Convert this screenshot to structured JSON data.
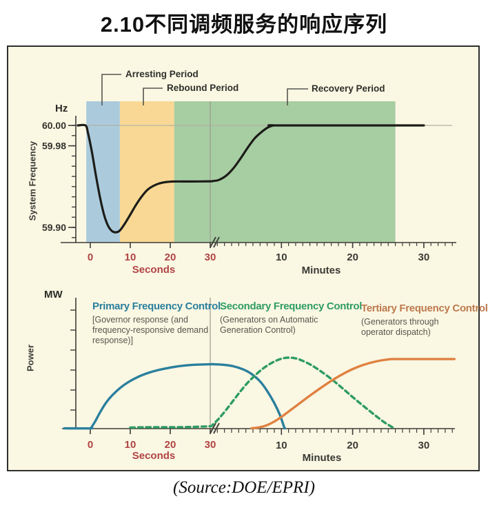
{
  "title": "2.10不同调频服务的响应序列",
  "source": "(Source:DOE/EPRI)",
  "colors": {
    "background_panel": "#faf7e3",
    "seconds_axis_text": "#b04343",
    "minutes_axis_text": "#3a3a34",
    "frequency_curve": "#1c1c18"
  },
  "chart_data": [
    {
      "id": "system-frequency-response",
      "type": "line",
      "title": "",
      "ylabel": "System Frequency",
      "y_unit": "Hz",
      "ylim": [
        59.885,
        60.005
      ],
      "y_ticks": [
        {
          "value": 60.0,
          "label": "60.00"
        },
        {
          "value": 59.98,
          "label": "59.98"
        },
        {
          "value": 59.9,
          "label": "59.90"
        }
      ],
      "y_minor_tick_step": 0.01,
      "gridline_hz": 60.0,
      "x_axis": {
        "seconds_label": "Seconds",
        "ticks_seconds": [
          0,
          10,
          20,
          30
        ],
        "minutes_label": "Minutes",
        "ticks_minutes": [
          10,
          20,
          30
        ],
        "break_after_seconds": 30
      },
      "bands": [
        {
          "label": "Arresting Period",
          "color": "#abcbdd",
          "from_seconds": -1,
          "to_seconds": 7.4
        },
        {
          "label": "Rebound Period",
          "color": "#f8d894",
          "from_seconds": 7.4,
          "to_seconds": 21
        },
        {
          "label": "Recovery Period",
          "color": "#a7cda2",
          "from_seconds": 21,
          "to_minutes": 26
        }
      ],
      "series": [
        {
          "name": "System Frequency",
          "color": "#1c1c18",
          "style": "solid",
          "points_seconds": [
            [
              -3.1,
              60.0
            ],
            [
              -1.2,
              60.0
            ],
            [
              -0.6,
              59.993
            ],
            [
              0.4,
              59.974
            ],
            [
              1.4,
              59.951
            ],
            [
              2.4,
              59.93
            ],
            [
              3.4,
              59.913
            ],
            [
              4.4,
              59.902
            ],
            [
              5.4,
              59.8965
            ],
            [
              6.4,
              59.8952
            ],
            [
              7.4,
              59.897
            ],
            [
              8.6,
              59.9035
            ],
            [
              10,
              59.9125
            ],
            [
              11.5,
              59.9225
            ],
            [
              13,
              59.931
            ],
            [
              14.5,
              59.9375
            ],
            [
              16.5,
              59.942
            ],
            [
              18.5,
              59.9442
            ],
            [
              21,
              59.945
            ],
            [
              25,
              59.945
            ],
            [
              30,
              59.9452
            ]
          ],
          "points_minutes": [
            [
              0.4,
              59.9455
            ],
            [
              1.2,
              59.9465
            ],
            [
              2.2,
              59.9505
            ],
            [
              3.2,
              59.9575
            ],
            [
              4.2,
              59.967
            ],
            [
              5.2,
              59.9775
            ],
            [
              6.2,
              59.987
            ],
            [
              7.2,
              59.9935
            ],
            [
              8.1,
              59.998
            ],
            [
              8.9,
              60.0
            ],
            [
              10,
              60.0
            ],
            [
              30,
              60.0
            ]
          ]
        }
      ]
    },
    {
      "id": "power-response",
      "type": "line",
      "title": "",
      "ylabel": "Power",
      "y_unit": "MW",
      "value_scale": "relative (no numeric scale shown)",
      "x_axis": {
        "seconds_label": "Seconds",
        "ticks_seconds": [
          0,
          10,
          20,
          30
        ],
        "minutes_label": "Minutes",
        "ticks_minutes": [
          10,
          20,
          30
        ],
        "break_after_seconds": 30
      },
      "series": [
        {
          "name": "Primary Frequency Control",
          "annotation": "[Governor response (and frequency-responsive demand response)]",
          "color": "#2a7f9d",
          "label_color": "#2a7f9d",
          "style": "solid",
          "points_seconds": [
            [
              -6.5,
              0.004
            ],
            [
              0,
              0.004
            ],
            [
              0.3,
              0.02
            ],
            [
              1.2,
              0.1
            ],
            [
              2.5,
              0.235
            ],
            [
              4,
              0.37
            ],
            [
              5.5,
              0.47
            ],
            [
              7.5,
              0.575
            ],
            [
              9.5,
              0.655
            ],
            [
              12,
              0.73
            ],
            [
              14.5,
              0.785
            ],
            [
              17,
              0.825
            ],
            [
              20,
              0.86
            ],
            [
              23,
              0.885
            ],
            [
              26,
              0.9
            ],
            [
              30,
              0.907
            ]
          ],
          "points_minutes": [
            [
              0.5,
              0.907
            ],
            [
              1.8,
              0.9
            ],
            [
              3.2,
              0.88
            ],
            [
              4.6,
              0.835
            ],
            [
              5.8,
              0.77
            ],
            [
              7,
              0.665
            ],
            [
              8,
              0.53
            ],
            [
              9,
              0.36
            ],
            [
              9.8,
              0.19
            ],
            [
              10.35,
              0.03
            ],
            [
              10.5,
              0.004
            ]
          ]
        },
        {
          "name": "Secondary Frequency Control",
          "annotation": "(Generators on Automatic Generation Control)",
          "color": "#2f9c63",
          "label_color": "#2f9c63",
          "style": "dashed",
          "points_seconds": [
            [
              10,
              0.015
            ],
            [
              14,
              0.02
            ],
            [
              18,
              0.02
            ],
            [
              22,
              0.02
            ],
            [
              26,
              0.025
            ],
            [
              30,
              0.035
            ]
          ],
          "points_minutes": [
            [
              0.4,
              0.06
            ],
            [
              1.2,
              0.14
            ],
            [
              2.2,
              0.26
            ],
            [
              3.2,
              0.39
            ],
            [
              4.2,
              0.52
            ],
            [
              5.2,
              0.64
            ],
            [
              6.2,
              0.74
            ],
            [
              7.2,
              0.83
            ],
            [
              8.2,
              0.9
            ],
            [
              9.2,
              0.955
            ],
            [
              10.2,
              0.99
            ],
            [
              11,
              1.0
            ],
            [
              12,
              0.99
            ],
            [
              13,
              0.955
            ],
            [
              14.2,
              0.895
            ],
            [
              15.5,
              0.81
            ],
            [
              17,
              0.7
            ],
            [
              18.5,
              0.575
            ],
            [
              20,
              0.445
            ],
            [
              21.5,
              0.32
            ],
            [
              23,
              0.2
            ],
            [
              24.3,
              0.1
            ],
            [
              25.4,
              0.03
            ],
            [
              25.9,
              0.005
            ]
          ]
        },
        {
          "name": "Tertiary Frequency Control",
          "annotation": "(Generators through operator dispatch)",
          "color": "#e08140",
          "label_color": "#bd7a4e",
          "style": "solid",
          "points_minutes": [
            [
              5.8,
              0.004
            ],
            [
              7,
              0.02
            ],
            [
              8,
              0.05
            ],
            [
              9,
              0.1
            ],
            [
              10,
              0.165
            ],
            [
              11.2,
              0.255
            ],
            [
              12.6,
              0.36
            ],
            [
              14,
              0.465
            ],
            [
              15.4,
              0.565
            ],
            [
              16.8,
              0.66
            ],
            [
              18.2,
              0.745
            ],
            [
              19.6,
              0.82
            ],
            [
              21,
              0.88
            ],
            [
              22.4,
              0.925
            ],
            [
              23.7,
              0.955
            ],
            [
              25,
              0.975
            ],
            [
              25.8,
              0.98
            ],
            [
              27,
              0.98
            ],
            [
              30,
              0.98
            ],
            [
              34.3,
              0.98
            ]
          ]
        }
      ]
    }
  ]
}
